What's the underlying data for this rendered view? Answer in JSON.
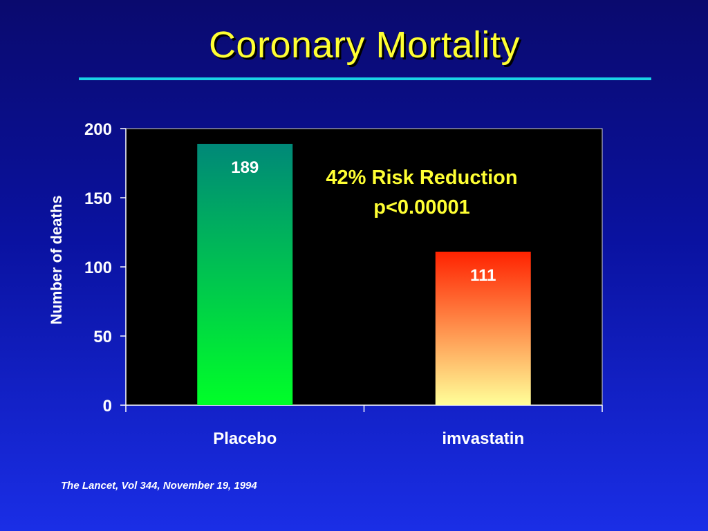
{
  "slide": {
    "title": "Coronary Mortality",
    "annotation_line1": "42% Risk Reduction",
    "annotation_line2": "p<0.00001",
    "citation": "The Lancet, Vol 344, November 19, 1994"
  },
  "colors": {
    "title": "#ffff33",
    "rule": "#19d3e6",
    "plot_background": "#000000",
    "placebo_top": "#008878",
    "placebo_bottom": "#00ff28",
    "simvastatin_top": "#ff2200",
    "simvastatin_bottom": "#ffff99"
  },
  "chart_data": {
    "type": "bar",
    "categories": [
      "Placebo",
      "imvastatin"
    ],
    "values": [
      189,
      111
    ],
    "data_labels": [
      "189",
      "111"
    ],
    "title": "",
    "xlabel": "",
    "ylabel": "Number of deaths",
    "ylim": [
      0,
      200
    ],
    "yticks": [
      0,
      50,
      100,
      150,
      200
    ],
    "grid": false,
    "legend": "none"
  }
}
